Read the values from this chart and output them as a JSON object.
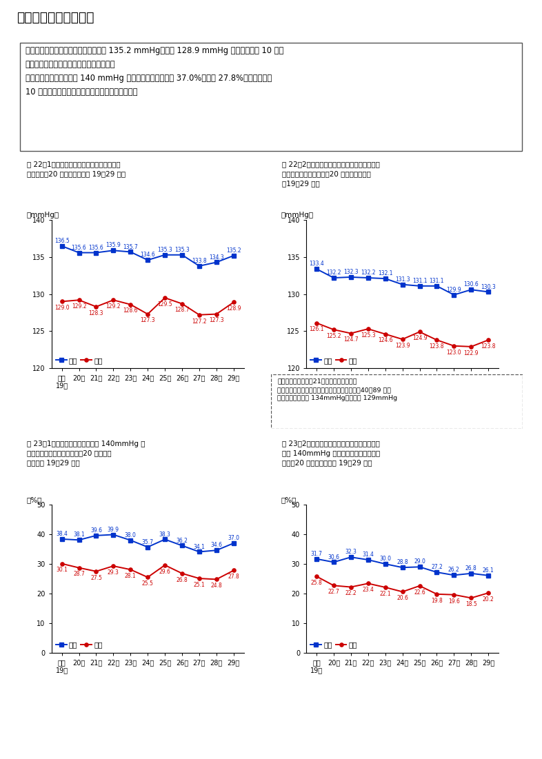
{
  "title": "３．血圧に関する状況",
  "sum_line1": "　収縮期（最高）血圧の平均値は男性 135.2 mmHg、女性 128.9 mmHg である。この 10 年間",
  "sum_line2": "でみると、男女とも有意に減少している。",
  "sum_line3": "　収縮期（最高）血圧が 140 mmHg 以上の者の割合は男性 37.0%、女性 27.8%である。この",
  "sum_line4": "10 年間でみると、男女とも有意に減少している。",
  "fig221_t1": "図 22－1　収縮期（最高）血圧の平均値の年",
  "fig221_t2": "　次推移（20 歳以上）（平成 19〜29 年）",
  "fig222_t1": "図 22－2　年齢調整した、収縮期（最高）血圧",
  "fig222_t2": "　の平均値の年次推移（20 歳以上）（平成",
  "fig222_t3": "　19〜29 年）",
  "fig231_t1": "図 23－1　収縮期（最高）血圧が 140mmHg 以",
  "fig231_t2": "　上の者の割合の年次推移（20 歳以上）",
  "fig231_t3": "　（平成 19〜29 年）",
  "fig232_t1": "図 23－2　年齢調整した、収縮期（最高）血圧",
  "fig232_t2": "　が 140mmHg 以上の者の割合の年次推",
  "fig232_t3": "　移（20 歳以上）（平成 19〜29 年）",
  "x_labels": [
    "平成\n19年",
    "20年",
    "21年",
    "22年",
    "23年",
    "24年",
    "25年",
    "26年",
    "27年",
    "28年",
    "29年"
  ],
  "fig221_male": [
    136.5,
    135.6,
    135.6,
    135.9,
    135.7,
    134.6,
    135.3,
    135.3,
    133.8,
    134.3,
    135.2
  ],
  "fig221_female": [
    129.0,
    129.2,
    128.3,
    129.2,
    128.6,
    127.3,
    129.5,
    128.7,
    127.2,
    127.3,
    128.9
  ],
  "fig222_male": [
    133.4,
    132.2,
    132.3,
    132.2,
    132.1,
    131.3,
    131.1,
    131.1,
    129.9,
    130.6,
    130.3
  ],
  "fig222_female": [
    126.1,
    125.2,
    124.7,
    125.3,
    124.6,
    123.9,
    124.9,
    123.8,
    123.0,
    122.9,
    123.8
  ],
  "fig231_male": [
    38.4,
    38.1,
    39.6,
    39.9,
    38.0,
    35.7,
    38.3,
    36.2,
    34.1,
    34.6,
    37.0
  ],
  "fig231_female": [
    30.1,
    28.7,
    27.5,
    29.3,
    28.1,
    25.5,
    29.6,
    26.8,
    25.1,
    24.8,
    27.8
  ],
  "fig232_male": [
    31.7,
    30.6,
    32.3,
    31.4,
    30.0,
    28.8,
    29.0,
    27.2,
    26.2,
    26.8,
    26.1
  ],
  "fig232_female": [
    25.8,
    22.7,
    22.2,
    23.4,
    22.1,
    20.6,
    22.6,
    19.8,
    19.6,
    18.5,
    20.2
  ],
  "male_color": "#0033CC",
  "female_color": "#CC0000",
  "note_l1": "（参考）「健康日本21（第２次）」の目標",
  "note_l2": "　高血圧の改善（収縮期血圧の平均値の低下：40〜89 歳）",
  "note_l3": "　目標値：　男性 134mmHg、　女性 129mmHg",
  "ylim_mmhg": [
    120,
    140
  ],
  "ylim_pct": [
    0,
    50
  ],
  "yticks_mmhg": [
    120,
    125,
    130,
    135,
    140
  ],
  "yticks_pct": [
    0,
    10,
    20,
    30,
    40,
    50
  ],
  "ylabel_mmhg": "（mmHg）",
  "ylabel_pct": "（%）",
  "legend_male": "男性",
  "legend_female": "女性"
}
